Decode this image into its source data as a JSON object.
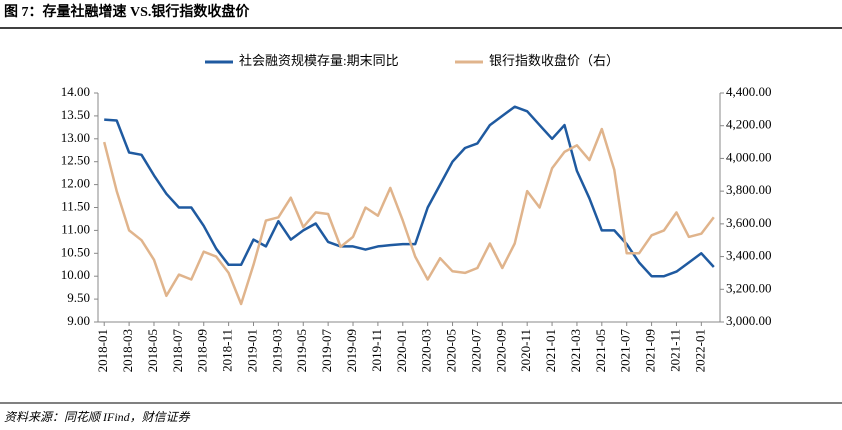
{
  "chart_data": {
    "type": "line",
    "title": "图 7：存量社融增速 VS.银行指数收盘价",
    "source": "资料来源：同花顺 IFind，财信证券",
    "categories": [
      "2018-01",
      null,
      "2018-03",
      null,
      "2018-05",
      null,
      "2018-07",
      null,
      "2018-09",
      null,
      "2018-11",
      null,
      "2019-01",
      null,
      "2019-03",
      null,
      "2019-05",
      null,
      "2019-07",
      null,
      "2019-09",
      null,
      "2019-11",
      null,
      "2020-01",
      null,
      "2020-03",
      null,
      "2020-05",
      null,
      "2020-07",
      null,
      "2020-09",
      null,
      "2020-11",
      null,
      "2021-01",
      null,
      "2021-03",
      null,
      "2021-05",
      null,
      "2021-07",
      null,
      "2021-09",
      null,
      "2021-11",
      null,
      "2022-01",
      null
    ],
    "series": [
      {
        "name": "社会融资规模存量:期末同比",
        "color": "#1f5aa0",
        "axis": "y",
        "values": [
          13.42,
          13.4,
          12.7,
          12.65,
          12.2,
          11.8,
          11.5,
          11.5,
          11.1,
          10.6,
          10.25,
          10.25,
          10.8,
          10.65,
          11.2,
          10.8,
          11.0,
          11.15,
          10.75,
          10.65,
          10.65,
          10.58,
          10.65,
          10.68,
          10.7,
          10.7,
          11.5,
          12.0,
          12.5,
          12.8,
          12.9,
          13.3,
          13.5,
          13.7,
          13.6,
          13.3,
          13.0,
          13.3,
          12.3,
          11.7,
          11.0,
          11.0,
          10.7,
          10.3,
          10.0,
          10.0,
          10.1,
          10.3,
          10.5,
          10.2
        ]
      },
      {
        "name": "银行指数收盘价（右）",
        "color": "#e0b48c",
        "axis": "y2",
        "values": [
          4100,
          3800,
          3560,
          3500,
          3380,
          3160,
          3290,
          3260,
          3430,
          3400,
          3300,
          3110,
          3350,
          3620,
          3640,
          3760,
          3580,
          3670,
          3660,
          3460,
          3520,
          3700,
          3650,
          3820,
          3620,
          3400,
          3260,
          3390,
          3310,
          3300,
          3330,
          3480,
          3330,
          3480,
          3800,
          3700,
          3940,
          4040,
          4080,
          3990,
          4180,
          3930,
          3420,
          3420,
          3530,
          3560,
          3670,
          3520,
          3540,
          3640
        ]
      }
    ],
    "ylim": [
      9,
      14
    ],
    "yticks": [
      {
        "value": 9,
        "label": "9.00"
      },
      {
        "value": 9.5,
        "label": "9.50"
      },
      {
        "value": 10,
        "label": "10.00"
      },
      {
        "value": 10.5,
        "label": "10.50"
      },
      {
        "value": 11,
        "label": "11.00"
      },
      {
        "value": 11.5,
        "label": "11.50"
      },
      {
        "value": 12,
        "label": "12.00"
      },
      {
        "value": 12.5,
        "label": "12.50"
      },
      {
        "value": 13,
        "label": "13.00"
      },
      {
        "value": 13.5,
        "label": "13.50"
      },
      {
        "value": 14,
        "label": "14.00"
      }
    ],
    "y2lim": [
      3000,
      4400
    ],
    "y2ticks": [
      {
        "value": 3000,
        "label": "3,000.00"
      },
      {
        "value": 3200,
        "label": "3,200.00"
      },
      {
        "value": 3400,
        "label": "3,400.00"
      },
      {
        "value": 3600,
        "label": "3,600.00"
      },
      {
        "value": 3800,
        "label": "3,800.00"
      },
      {
        "value": 4000,
        "label": "4,000.00"
      },
      {
        "value": 4200,
        "label": "4,200.00"
      },
      {
        "value": 4400,
        "label": "4,400.00"
      }
    ]
  }
}
